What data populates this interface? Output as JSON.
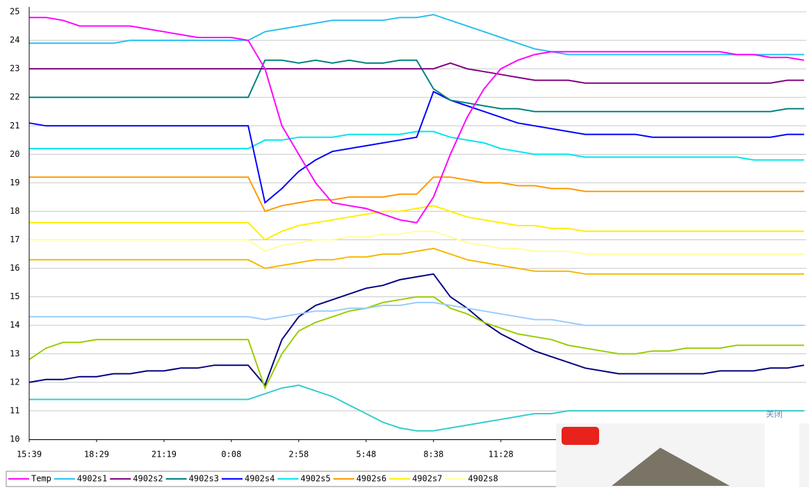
{
  "chart_data": {
    "type": "line",
    "categories": [
      "15:39",
      null,
      null,
      null,
      "18:29",
      null,
      null,
      null,
      "21:19",
      null,
      null,
      null,
      "0:08",
      null,
      null,
      null,
      "2:58",
      null,
      null,
      null,
      "5:48",
      null,
      null,
      null,
      "8:38",
      null,
      null,
      null,
      "11:28",
      null,
      null,
      null,
      null,
      null,
      null,
      null,
      null,
      null,
      null,
      null,
      null,
      null,
      null,
      null,
      null,
      null,
      null
    ],
    "ylim": [
      10,
      25
    ],
    "yticks": [
      10,
      11,
      12,
      13,
      14,
      15,
      16,
      17,
      18,
      19,
      20,
      21,
      22,
      23,
      24,
      25
    ],
    "grid": true,
    "series": [
      {
        "name": "Temp",
        "color": "#ff00ff",
        "values": [
          24.8,
          24.8,
          24.7,
          24.5,
          24.5,
          24.5,
          24.5,
          24.4,
          24.3,
          24.2,
          24.1,
          24.1,
          24.1,
          24.0,
          23.0,
          21.0,
          20.0,
          19.0,
          18.3,
          18.2,
          18.1,
          17.9,
          17.7,
          17.6,
          18.5,
          20.0,
          21.3,
          22.3,
          23.0,
          23.3,
          23.5,
          23.6,
          23.6,
          23.6,
          23.6,
          23.6,
          23.6,
          23.6,
          23.6,
          23.6,
          23.6,
          23.6,
          23.5,
          23.5,
          23.4,
          23.4,
          23.3
        ]
      },
      {
        "name": "4902s1",
        "color": "#29c0f0",
        "values": [
          23.9,
          23.9,
          23.9,
          23.9,
          23.9,
          23.9,
          24.0,
          24.0,
          24.0,
          24.0,
          24.0,
          24.0,
          24.0,
          24.0,
          24.3,
          24.4,
          24.5,
          24.6,
          24.7,
          24.7,
          24.7,
          24.7,
          24.8,
          24.8,
          24.9,
          24.7,
          24.5,
          24.3,
          24.1,
          23.9,
          23.7,
          23.6,
          23.5,
          23.5,
          23.5,
          23.5,
          23.5,
          23.5,
          23.5,
          23.5,
          23.5,
          23.5,
          23.5,
          23.5,
          23.5,
          23.5,
          23.5
        ]
      },
      {
        "name": "4902s2",
        "color": "#800080",
        "values": [
          23.0,
          23.0,
          23.0,
          23.0,
          23.0,
          23.0,
          23.0,
          23.0,
          23.0,
          23.0,
          23.0,
          23.0,
          23.0,
          23.0,
          23.0,
          23.0,
          23.0,
          23.0,
          23.0,
          23.0,
          23.0,
          23.0,
          23.0,
          23.0,
          23.0,
          23.2,
          23.0,
          22.9,
          22.8,
          22.7,
          22.6,
          22.6,
          22.6,
          22.5,
          22.5,
          22.5,
          22.5,
          22.5,
          22.5,
          22.5,
          22.5,
          22.5,
          22.5,
          22.5,
          22.5,
          22.6,
          22.6
        ]
      },
      {
        "name": "4902s3",
        "color": "#008080",
        "values": [
          22.0,
          22.0,
          22.0,
          22.0,
          22.0,
          22.0,
          22.0,
          22.0,
          22.0,
          22.0,
          22.0,
          22.0,
          22.0,
          22.0,
          23.3,
          23.3,
          23.2,
          23.3,
          23.2,
          23.3,
          23.2,
          23.2,
          23.3,
          23.3,
          22.3,
          21.9,
          21.8,
          21.7,
          21.6,
          21.6,
          21.5,
          21.5,
          21.5,
          21.5,
          21.5,
          21.5,
          21.5,
          21.5,
          21.5,
          21.5,
          21.5,
          21.5,
          21.5,
          21.5,
          21.5,
          21.6,
          21.6
        ]
      },
      {
        "name": "4902s4",
        "color": "#0000ff",
        "values": [
          21.1,
          21.0,
          21.0,
          21.0,
          21.0,
          21.0,
          21.0,
          21.0,
          21.0,
          21.0,
          21.0,
          21.0,
          21.0,
          21.0,
          18.3,
          18.8,
          19.4,
          19.8,
          20.1,
          20.2,
          20.3,
          20.4,
          20.5,
          20.6,
          22.2,
          21.9,
          21.7,
          21.5,
          21.3,
          21.1,
          21.0,
          20.9,
          20.8,
          20.7,
          20.7,
          20.7,
          20.7,
          20.6,
          20.6,
          20.6,
          20.6,
          20.6,
          20.6,
          20.6,
          20.6,
          20.7,
          20.7
        ]
      },
      {
        "name": "4902s5",
        "color": "#00e5ee",
        "values": [
          20.2,
          20.2,
          20.2,
          20.2,
          20.2,
          20.2,
          20.2,
          20.2,
          20.2,
          20.2,
          20.2,
          20.2,
          20.2,
          20.2,
          20.5,
          20.5,
          20.6,
          20.6,
          20.6,
          20.7,
          20.7,
          20.7,
          20.7,
          20.8,
          20.8,
          20.6,
          20.5,
          20.4,
          20.2,
          20.1,
          20.0,
          20.0,
          20.0,
          19.9,
          19.9,
          19.9,
          19.9,
          19.9,
          19.9,
          19.9,
          19.9,
          19.9,
          19.9,
          19.8,
          19.8,
          19.8,
          19.8
        ]
      },
      {
        "name": "4902s6",
        "color": "#ff9900",
        "values": [
          19.2,
          19.2,
          19.2,
          19.2,
          19.2,
          19.2,
          19.2,
          19.2,
          19.2,
          19.2,
          19.2,
          19.2,
          19.2,
          19.2,
          18.0,
          18.2,
          18.3,
          18.4,
          18.4,
          18.5,
          18.5,
          18.5,
          18.6,
          18.6,
          19.2,
          19.2,
          19.1,
          19.0,
          19.0,
          18.9,
          18.9,
          18.8,
          18.8,
          18.7,
          18.7,
          18.7,
          18.7,
          18.7,
          18.7,
          18.7,
          18.7,
          18.7,
          18.7,
          18.7,
          18.7,
          18.7,
          18.7
        ]
      },
      {
        "name": "4902s7",
        "color": "#ffee00",
        "values": [
          17.6,
          17.6,
          17.6,
          17.6,
          17.6,
          17.6,
          17.6,
          17.6,
          17.6,
          17.6,
          17.6,
          17.6,
          17.6,
          17.6,
          17.0,
          17.3,
          17.5,
          17.6,
          17.7,
          17.8,
          17.9,
          18.0,
          18.0,
          18.1,
          18.2,
          18.0,
          17.8,
          17.7,
          17.6,
          17.5,
          17.5,
          17.4,
          17.4,
          17.3,
          17.3,
          17.3,
          17.3,
          17.3,
          17.3,
          17.3,
          17.3,
          17.3,
          17.3,
          17.3,
          17.3,
          17.3,
          17.3
        ]
      },
      {
        "name": "4902s8",
        "color": "#ffff99",
        "values": [
          17.0,
          17.0,
          17.0,
          17.0,
          17.0,
          17.0,
          17.0,
          17.0,
          17.0,
          17.0,
          17.0,
          17.0,
          17.0,
          17.0,
          16.6,
          16.8,
          16.9,
          17.0,
          17.0,
          17.1,
          17.1,
          17.2,
          17.2,
          17.3,
          17.3,
          17.1,
          16.9,
          16.8,
          16.7,
          16.7,
          16.6,
          16.6,
          16.6,
          16.5,
          16.5,
          16.5,
          16.5,
          16.5,
          16.5,
          16.5,
          16.5,
          16.5,
          16.5,
          16.5,
          16.5,
          16.5,
          16.5
        ]
      },
      {
        "color": "#f5b800",
        "values": [
          16.3,
          16.3,
          16.3,
          16.3,
          16.3,
          16.3,
          16.3,
          16.3,
          16.3,
          16.3,
          16.3,
          16.3,
          16.3,
          16.3,
          16.0,
          16.1,
          16.2,
          16.3,
          16.3,
          16.4,
          16.4,
          16.5,
          16.5,
          16.6,
          16.7,
          16.5,
          16.3,
          16.2,
          16.1,
          16.0,
          15.9,
          15.9,
          15.9,
          15.8,
          15.8,
          15.8,
          15.8,
          15.8,
          15.8,
          15.8,
          15.8,
          15.8,
          15.8,
          15.8,
          15.8,
          15.8,
          15.8
        ]
      },
      {
        "color": "#99ccff",
        "values": [
          14.3,
          14.3,
          14.3,
          14.3,
          14.3,
          14.3,
          14.3,
          14.3,
          14.3,
          14.3,
          14.3,
          14.3,
          14.3,
          14.3,
          14.2,
          14.3,
          14.4,
          14.5,
          14.5,
          14.6,
          14.6,
          14.7,
          14.7,
          14.8,
          14.8,
          14.7,
          14.6,
          14.5,
          14.4,
          14.3,
          14.2,
          14.2,
          14.1,
          14.0,
          14.0,
          14.0,
          14.0,
          14.0,
          14.0,
          14.0,
          14.0,
          14.0,
          14.0,
          14.0,
          14.0,
          14.0,
          14.0
        ]
      },
      {
        "color": "#99cc00",
        "values": [
          12.8,
          13.2,
          13.4,
          13.4,
          13.5,
          13.5,
          13.5,
          13.5,
          13.5,
          13.5,
          13.5,
          13.5,
          13.5,
          13.5,
          11.8,
          13.0,
          13.8,
          14.1,
          14.3,
          14.5,
          14.6,
          14.8,
          14.9,
          15.0,
          15.0,
          14.6,
          14.4,
          14.1,
          13.9,
          13.7,
          13.6,
          13.5,
          13.3,
          13.2,
          13.1,
          13.0,
          13.0,
          13.1,
          13.1,
          13.2,
          13.2,
          13.2,
          13.3,
          13.3,
          13.3,
          13.3,
          13.3
        ]
      },
      {
        "color": "#000080",
        "values": [
          12.0,
          12.1,
          12.1,
          12.2,
          12.2,
          12.3,
          12.3,
          12.4,
          12.4,
          12.5,
          12.5,
          12.6,
          12.6,
          12.6,
          11.9,
          13.5,
          14.3,
          14.7,
          14.9,
          15.1,
          15.3,
          15.4,
          15.6,
          15.7,
          15.8,
          15.0,
          14.6,
          14.1,
          13.7,
          13.4,
          13.1,
          12.9,
          12.7,
          12.5,
          12.4,
          12.3,
          12.3,
          12.3,
          12.3,
          12.3,
          12.3,
          12.4,
          12.4,
          12.4,
          12.5,
          12.5,
          12.6
        ]
      },
      {
        "color": "#33cccc",
        "values": [
          11.4,
          11.4,
          11.4,
          11.4,
          11.4,
          11.4,
          11.4,
          11.4,
          11.4,
          11.4,
          11.4,
          11.4,
          11.4,
          11.4,
          11.6,
          11.8,
          11.9,
          11.7,
          11.5,
          11.2,
          10.9,
          10.6,
          10.4,
          10.3,
          10.3,
          10.4,
          10.5,
          10.6,
          10.7,
          10.8,
          10.9,
          10.9,
          11.0,
          11.0,
          11.0,
          11.0,
          11.0,
          11.0,
          11.0,
          11.0,
          11.0,
          11.0,
          11.0,
          11.0,
          11.0,
          11.0,
          11.0
        ]
      }
    ]
  },
  "ad": {
    "close": "关闭"
  }
}
